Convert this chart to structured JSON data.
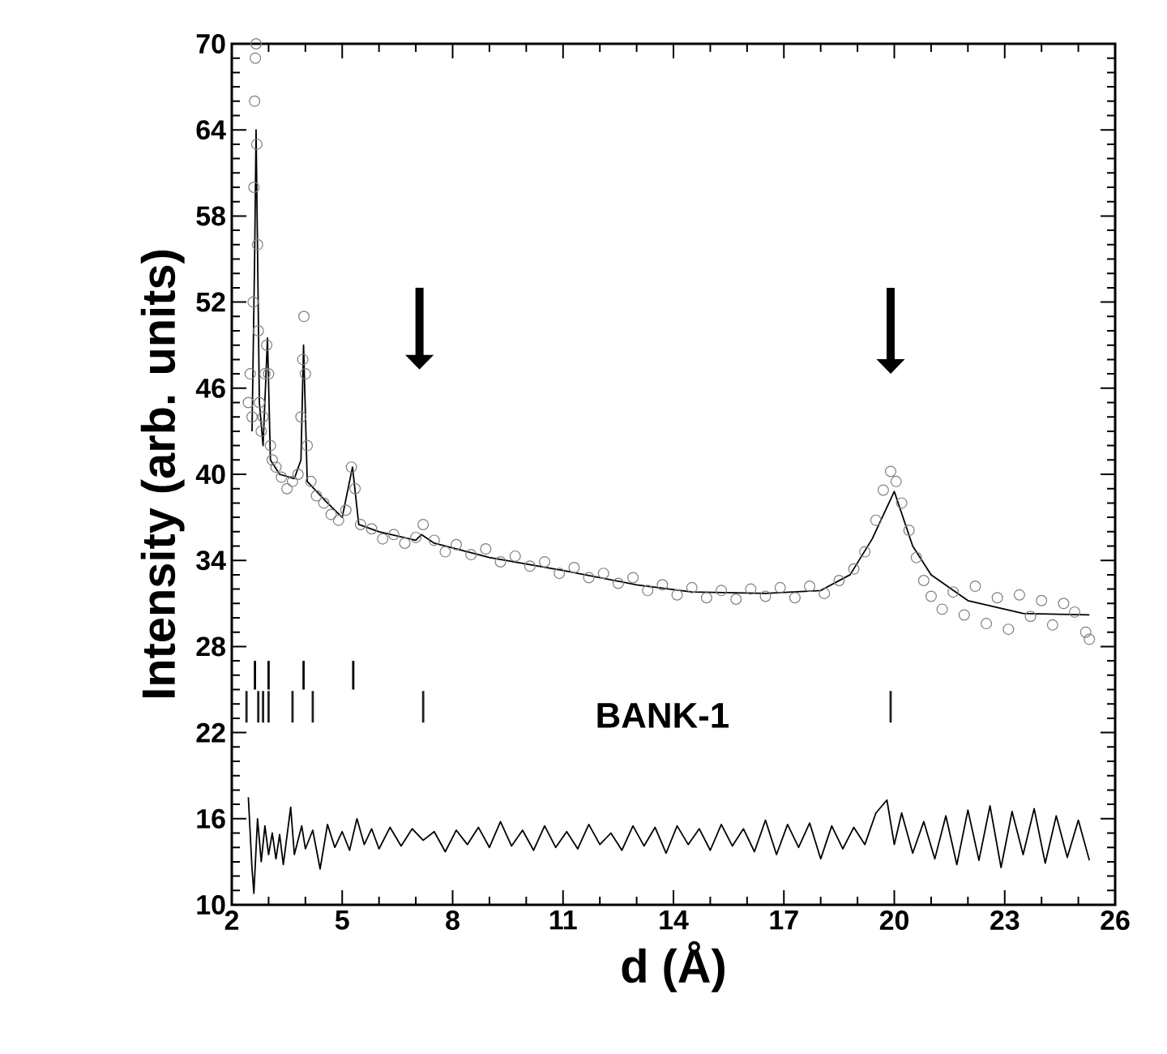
{
  "chart_data": {
    "type": "scatter",
    "xlabel": "d (Å)",
    "ylabel": "Intensity (arb. units)",
    "xlim": [
      2,
      26
    ],
    "ylim": [
      10,
      70
    ],
    "xticks": [
      2,
      5,
      8,
      11,
      14,
      17,
      20,
      23,
      26
    ],
    "yticks": [
      10,
      16,
      22,
      28,
      34,
      40,
      46,
      52,
      58,
      64,
      70
    ],
    "annotations": [
      "BANK-1"
    ],
    "series": [
      {
        "marker": "circle",
        "color": "#808080",
        "x": [
          2.45,
          2.5,
          2.55,
          2.58,
          2.6,
          2.62,
          2.64,
          2.66,
          2.68,
          2.7,
          2.72,
          2.75,
          2.8,
          2.85,
          2.9,
          2.95,
          3.0,
          3.05,
          3.1,
          3.2,
          3.35,
          3.5,
          3.65,
          3.8,
          3.88,
          3.93,
          3.96,
          4.0,
          4.05,
          4.15,
          4.3,
          4.5,
          4.7,
          4.9,
          5.1,
          5.25,
          5.35,
          5.5,
          5.8,
          6.1,
          6.4,
          6.7,
          7.0,
          7.2,
          7.5,
          7.8,
          8.1,
          8.5,
          8.9,
          9.3,
          9.7,
          10.1,
          10.5,
          10.9,
          11.3,
          11.7,
          12.1,
          12.5,
          12.9,
          13.3,
          13.7,
          14.1,
          14.5,
          14.9,
          15.3,
          15.7,
          16.1,
          16.5,
          16.9,
          17.3,
          17.7,
          18.1,
          18.5,
          18.9,
          19.2,
          19.5,
          19.7,
          19.9,
          20.05,
          20.2,
          20.4,
          20.6,
          20.8,
          21.0,
          21.3,
          21.6,
          21.9,
          22.2,
          22.5,
          22.8,
          23.1,
          23.4,
          23.7,
          24.0,
          24.3,
          24.6,
          24.9,
          25.2,
          25.3
        ],
        "values": [
          45,
          47,
          44,
          52,
          60,
          66,
          69,
          70,
          63,
          56,
          50,
          45,
          43,
          44,
          47,
          49,
          47,
          42,
          41,
          40.5,
          39.8,
          39,
          39.5,
          40,
          44,
          48,
          51,
          47,
          42,
          39.5,
          38.5,
          38,
          37.2,
          36.8,
          37.5,
          40.5,
          39,
          36.5,
          36.2,
          35.5,
          35.8,
          35.2,
          35.6,
          36.5,
          35.4,
          34.6,
          35.1,
          34.4,
          34.8,
          33.9,
          34.3,
          33.6,
          33.9,
          33.1,
          33.5,
          32.8,
          33.1,
          32.4,
          32.8,
          31.9,
          32.3,
          31.6,
          32.1,
          31.4,
          31.9,
          31.3,
          32.0,
          31.5,
          32.1,
          31.4,
          32.2,
          31.7,
          32.6,
          33.4,
          34.6,
          36.8,
          38.9,
          40.2,
          39.5,
          38.0,
          36.1,
          34.2,
          32.6,
          31.5,
          30.6,
          31.8,
          30.2,
          32.2,
          29.6,
          31.4,
          29.2,
          31.6,
          30.1,
          31.2,
          29.5,
          31.0,
          30.4,
          29.0,
          28.5
        ]
      },
      {
        "type": "line",
        "color": "#000000",
        "x": [
          2.55,
          2.62,
          2.66,
          2.75,
          2.85,
          2.97,
          3.05,
          3.3,
          3.7,
          3.88,
          3.95,
          4.05,
          4.6,
          5.0,
          5.28,
          5.45,
          6,
          7,
          7.15,
          7.5,
          9,
          11,
          13,
          14.5,
          16.5,
          18,
          18.8,
          19.4,
          20.0,
          20.5,
          21,
          22,
          23.5,
          25.3
        ],
        "values": [
          43,
          55,
          64,
          45,
          42,
          49.5,
          41,
          40,
          39.7,
          41,
          49,
          39.5,
          38,
          37,
          40.5,
          36.5,
          36,
          35.4,
          35.8,
          35.2,
          34.2,
          33.3,
          32.3,
          31.8,
          31.7,
          31.9,
          33,
          35.5,
          38.8,
          35,
          33,
          31.2,
          30.3,
          30.2
        ]
      },
      {
        "type": "line",
        "color": "#000000",
        "x": [
          2.45,
          2.55,
          2.6,
          2.7,
          2.8,
          2.9,
          3.0,
          3.1,
          3.2,
          3.3,
          3.4,
          3.6,
          3.7,
          3.9,
          4.0,
          4.2,
          4.4,
          4.6,
          4.8,
          5.0,
          5.2,
          5.4,
          5.6,
          5.8,
          6.0,
          6.3,
          6.6,
          6.9,
          7.2,
          7.5,
          7.8,
          8.1,
          8.4,
          8.7,
          9.0,
          9.3,
          9.6,
          9.9,
          10.2,
          10.5,
          10.8,
          11.1,
          11.4,
          11.7,
          12.0,
          12.3,
          12.6,
          12.9,
          13.2,
          13.5,
          13.8,
          14.1,
          14.4,
          14.7,
          15.0,
          15.3,
          15.6,
          15.9,
          16.2,
          16.5,
          16.8,
          17.1,
          17.4,
          17.7,
          18.0,
          18.3,
          18.6,
          18.9,
          19.2,
          19.5,
          19.8,
          20.0,
          20.2,
          20.5,
          20.8,
          21.1,
          21.4,
          21.7,
          22.0,
          22.3,
          22.6,
          22.9,
          23.2,
          23.5,
          23.8,
          24.1,
          24.4,
          24.7,
          25.0,
          25.3
        ],
        "values": [
          17.5,
          12.5,
          10.8,
          16,
          13,
          15.5,
          13.5,
          15,
          13.2,
          14.9,
          12.8,
          16.8,
          13.5,
          15.5,
          13.9,
          15.2,
          12.5,
          15.6,
          14,
          15.1,
          13.8,
          16,
          14.2,
          15.3,
          13.9,
          15.4,
          14.1,
          15.3,
          14.5,
          15.1,
          13.7,
          15.2,
          14.2,
          15.4,
          14,
          15.8,
          14.1,
          15.2,
          13.8,
          15.5,
          14,
          15.1,
          13.9,
          15.6,
          14.2,
          15,
          13.8,
          15.5,
          14.1,
          15.4,
          13.6,
          15.5,
          14.2,
          15.3,
          13.8,
          15.6,
          14.1,
          15.3,
          13.7,
          15.9,
          13.5,
          15.6,
          14,
          15.7,
          13.2,
          15.5,
          13.9,
          15.4,
          14.2,
          16.4,
          17.3,
          14.2,
          16.4,
          13.6,
          15.8,
          13.2,
          16.2,
          12.8,
          16.6,
          13.1,
          16.9,
          12.6,
          16.5,
          13.5,
          16.7,
          12.9,
          16.2,
          13.3,
          15.9,
          13.1
        ]
      },
      {
        "type": "bar",
        "color": "#000000",
        "x": [
          2.63,
          3.0,
          3.95,
          5.3
        ],
        "base": [
          25,
          25,
          25,
          25
        ],
        "values": [
          2,
          2,
          2,
          2
        ]
      },
      {
        "type": "bar",
        "color": "#202020",
        "x": [
          2.4,
          2.72,
          2.85,
          3.0,
          3.65,
          4.2,
          7.2,
          19.9
        ],
        "base": [
          22.7,
          22.7,
          22.7,
          22.7,
          22.7,
          22.7,
          22.7,
          22.7
        ],
        "values": [
          2.2,
          2.2,
          2.2,
          2.2,
          2.2,
          2.2,
          2.2,
          2.2
        ]
      }
    ]
  }
}
